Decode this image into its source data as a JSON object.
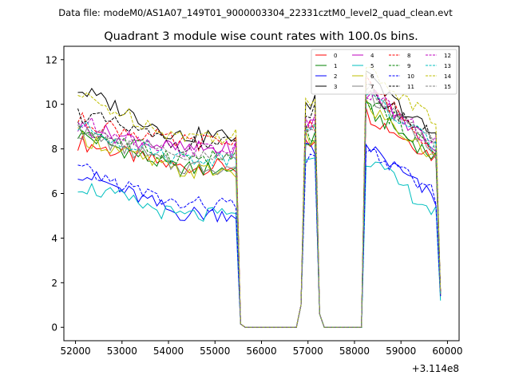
{
  "figure": {
    "suptitle": "Data file: modeM0/AS1A07_149T01_9000003304_22331cztM0_level2_quad_clean.evt",
    "title": "Quadrant 3 module wise count rates with 100.0s bins."
  },
  "chart_data": {
    "type": "line",
    "title": "Quadrant 3 module wise count rates with 100.0s bins.",
    "xlabel": "",
    "ylabel": "",
    "x_offset_label": "+3.114e8",
    "xlim": [
      51750,
      60250
    ],
    "ylim": [
      -0.6,
      12.6
    ],
    "xticks": [
      52000,
      53000,
      54000,
      55000,
      56000,
      57000,
      58000,
      59000,
      60000
    ],
    "xtick_labels": [
      "52000",
      "53000",
      "54000",
      "55000",
      "56000",
      "57000",
      "58000",
      "59000",
      "60000"
    ],
    "yticks": [
      0,
      2,
      4,
      6,
      8,
      10,
      12
    ],
    "ytick_labels": [
      "0",
      "2",
      "4",
      "6",
      "8",
      "10",
      "12"
    ],
    "grid": false,
    "legend": {
      "placement": "top-right",
      "columns": 4
    },
    "x_segments": [
      {
        "start": 52050,
        "end": 55450,
        "step": 100
      },
      {
        "start": 55550,
        "end": 56750,
        "step": 100
      },
      {
        "start": 56850,
        "end": 57250,
        "step": 100
      },
      {
        "start": 57350,
        "end": 58150,
        "step": 100
      },
      {
        "start": 58250,
        "end": 59850,
        "step": 100
      }
    ],
    "series": [
      {
        "name": "0",
        "color": "#ff0000",
        "dash": "solid",
        "level1": 8.3,
        "level2": 7.2,
        "level3": 9.6,
        "level4": 7.6,
        "peak": 8.3,
        "end": 1.5
      },
      {
        "name": "1",
        "color": "#008000",
        "dash": "solid",
        "level1": 8.7,
        "level2": 7.1,
        "level3": 9.8,
        "level4": 7.6,
        "peak": 8.5,
        "end": 1.4
      },
      {
        "name": "2",
        "color": "#0000ff",
        "dash": "solid",
        "level1": 7.0,
        "level2": 5.1,
        "level3": 8.2,
        "level4": 5.7,
        "peak": 7.9,
        "end": 1.4
      },
      {
        "name": "3",
        "color": "#000000",
        "dash": "solid",
        "level1": 10.7,
        "level2": 8.6,
        "level3": 11.2,
        "level4": 8.5,
        "peak": 10.1,
        "end": 1.6
      },
      {
        "name": "4",
        "color": "#bf00bf",
        "dash": "solid",
        "level1": 9.0,
        "level2": 8.0,
        "level3": 10.6,
        "level4": 8.1,
        "peak": 9.0,
        "end": 1.5
      },
      {
        "name": "5",
        "color": "#00bfbf",
        "dash": "solid",
        "level1": 6.4,
        "level2": 5.0,
        "level3": 7.6,
        "level4": 5.1,
        "peak": 7.2,
        "end": 1.2
      },
      {
        "name": "6",
        "color": "#bfbf00",
        "dash": "solid",
        "level1": 8.6,
        "level2": 7.0,
        "level3": 10.0,
        "level4": 7.5,
        "peak": 8.6,
        "end": 1.4
      },
      {
        "name": "7",
        "color": "#808080",
        "dash": "solid",
        "level1": 8.8,
        "level2": 7.2,
        "level3": 10.6,
        "level4": 7.9,
        "peak": 8.7,
        "end": 1.5
      },
      {
        "name": "8",
        "color": "#ff0000",
        "dash": "dashed",
        "level1": 9.3,
        "level2": 8.3,
        "level3": 11.0,
        "level4": 8.0,
        "peak": 9.0,
        "end": 1.6
      },
      {
        "name": "9",
        "color": "#008000",
        "dash": "dashed",
        "level1": 8.9,
        "level2": 7.6,
        "level3": 10.3,
        "level4": 7.8,
        "peak": 8.7,
        "end": 1.5
      },
      {
        "name": "10",
        "color": "#0000ff",
        "dash": "dashed",
        "level1": 7.1,
        "level2": 5.5,
        "level3": 8.0,
        "level4": 5.9,
        "peak": 7.8,
        "end": 1.4
      },
      {
        "name": "11",
        "color": "#000000",
        "dash": "dashed",
        "level1": 9.6,
        "level2": 8.2,
        "level3": 10.7,
        "level4": 8.4,
        "peak": 9.7,
        "end": 1.6
      },
      {
        "name": "12",
        "color": "#bf00bf",
        "dash": "dashed",
        "level1": 9.2,
        "level2": 8.0,
        "level3": 10.6,
        "level4": 8.2,
        "peak": 9.3,
        "end": 1.6
      },
      {
        "name": "13",
        "color": "#00bfbf",
        "dash": "dashed",
        "level1": 9.0,
        "level2": 7.6,
        "level3": 10.5,
        "level4": 8.0,
        "peak": 9.0,
        "end": 1.5
      },
      {
        "name": "14",
        "color": "#bfbf00",
        "dash": "dashed",
        "level1": 10.4,
        "level2": 8.6,
        "level3": 11.6,
        "level4": 9.2,
        "peak": 10.0,
        "end": 1.6
      },
      {
        "name": "15",
        "color": "#808080",
        "dash": "dashed",
        "level1": 9.0,
        "level2": 7.6,
        "level3": 10.8,
        "level4": 8.1,
        "peak": 8.9,
        "end": 1.5
      }
    ]
  }
}
